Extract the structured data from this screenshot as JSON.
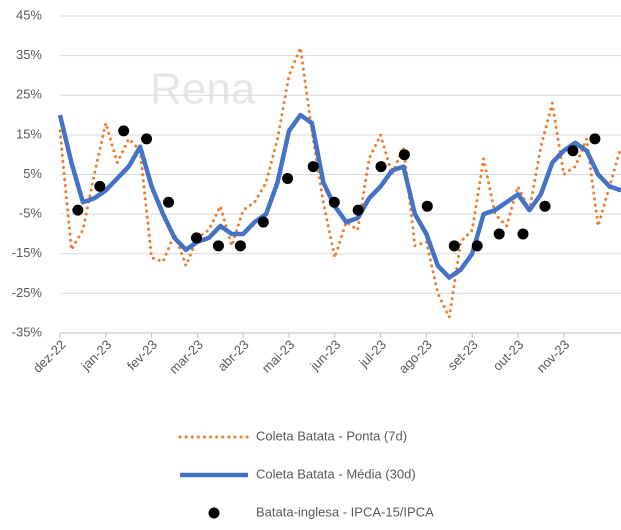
{
  "chart_data": {
    "type": "line",
    "x": [
      0,
      0.25,
      0.5,
      0.75,
      1,
      1.25,
      1.5,
      1.75,
      2,
      2.25,
      2.5,
      2.75,
      3,
      3.25,
      3.5,
      3.75,
      4,
      4.25,
      4.5,
      4.75,
      5,
      5.25,
      5.5,
      5.75,
      6,
      6.25,
      6.5,
      6.75,
      7,
      7.25,
      7.5,
      7.75,
      8,
      8.25,
      8.5,
      8.75,
      9,
      9.25,
      9.5,
      9.75,
      10,
      10.25,
      10.5,
      10.75,
      11,
      11.25,
      11.5,
      11.75,
      12,
      12.25
    ],
    "xlim": [
      0,
      12.25
    ],
    "xticks": [
      {
        "value": 0,
        "label": "dez-22"
      },
      {
        "value": 1,
        "label": "jan-23"
      },
      {
        "value": 2,
        "label": "fev-23"
      },
      {
        "value": 3,
        "label": "mar-23"
      },
      {
        "value": 4,
        "label": "abr-23"
      },
      {
        "value": 5,
        "label": "mai-23"
      },
      {
        "value": 6,
        "label": "jun-23"
      },
      {
        "value": 7,
        "label": "jul-23"
      },
      {
        "value": 8,
        "label": "ago-23"
      },
      {
        "value": 9,
        "label": "set-23"
      },
      {
        "value": 10,
        "label": "out-23"
      },
      {
        "value": 11,
        "label": "nov-23"
      }
    ],
    "ylim": [
      -35,
      45
    ],
    "yticks": [
      {
        "value": -35,
        "label": "-35%"
      },
      {
        "value": -25,
        "label": "-25%"
      },
      {
        "value": -15,
        "label": "-15%"
      },
      {
        "value": -5,
        "label": "-5%"
      },
      {
        "value": 5,
        "label": "5%"
      },
      {
        "value": 15,
        "label": "15%"
      },
      {
        "value": 25,
        "label": "25%"
      },
      {
        "value": 35,
        "label": "35%"
      },
      {
        "value": 45,
        "label": "45%"
      }
    ],
    "grid": true,
    "watermark": "Rena",
    "series": [
      {
        "name": "Coleta Batata - Ponta (7d)",
        "color": "#ed7d31",
        "style": "dotted",
        "values": [
          16,
          -14,
          -9,
          5,
          18,
          8,
          14,
          11,
          -16,
          -17,
          -10,
          -18,
          -11,
          -9,
          -3,
          -13,
          -4,
          -2,
          3,
          14,
          30,
          37,
          16,
          -2,
          -16,
          -7,
          -9,
          9,
          15,
          5,
          12,
          -13,
          -12,
          -25,
          -31,
          -12,
          -9,
          9,
          -5,
          -8,
          2,
          -4,
          12,
          23,
          5,
          7,
          14,
          -8,
          2,
          12
        ]
      },
      {
        "name": "Coleta Batata - Média (30d)",
        "color": "#4472c4",
        "style": "solid",
        "values": [
          20,
          8,
          -2,
          -1,
          1,
          4,
          7,
          12,
          2,
          -5,
          -11,
          -14,
          -12,
          -11,
          -8,
          -10,
          -10,
          -7,
          -5,
          3,
          16,
          20,
          18,
          3,
          -3,
          -7,
          -6,
          -1,
          2,
          6,
          7,
          -5,
          -10,
          -18,
          -21,
          -19,
          -15,
          -5,
          -4,
          -2,
          0,
          -4,
          0,
          8,
          11,
          13,
          11,
          5,
          2,
          1
        ]
      },
      {
        "name": "Batata-inglesa  - IPCA-15/IPCA",
        "color": "#000000",
        "style": "markers",
        "x": [
          0.39,
          0.87,
          1.39,
          1.89,
          2.37,
          2.98,
          3.46,
          3.94,
          4.44,
          4.97,
          5.53,
          5.99,
          6.51,
          7.01,
          7.52,
          8.02,
          8.61,
          9.11,
          9.59,
          10.11,
          10.59,
          11.2,
          11.68
        ],
        "values": [
          -4,
          2,
          16,
          14,
          -2,
          -11,
          -13,
          -13,
          -7,
          4,
          7,
          -2,
          -4,
          7,
          10,
          -3,
          -13,
          -13,
          -10,
          -10,
          -3,
          11,
          14
        ]
      }
    ]
  }
}
